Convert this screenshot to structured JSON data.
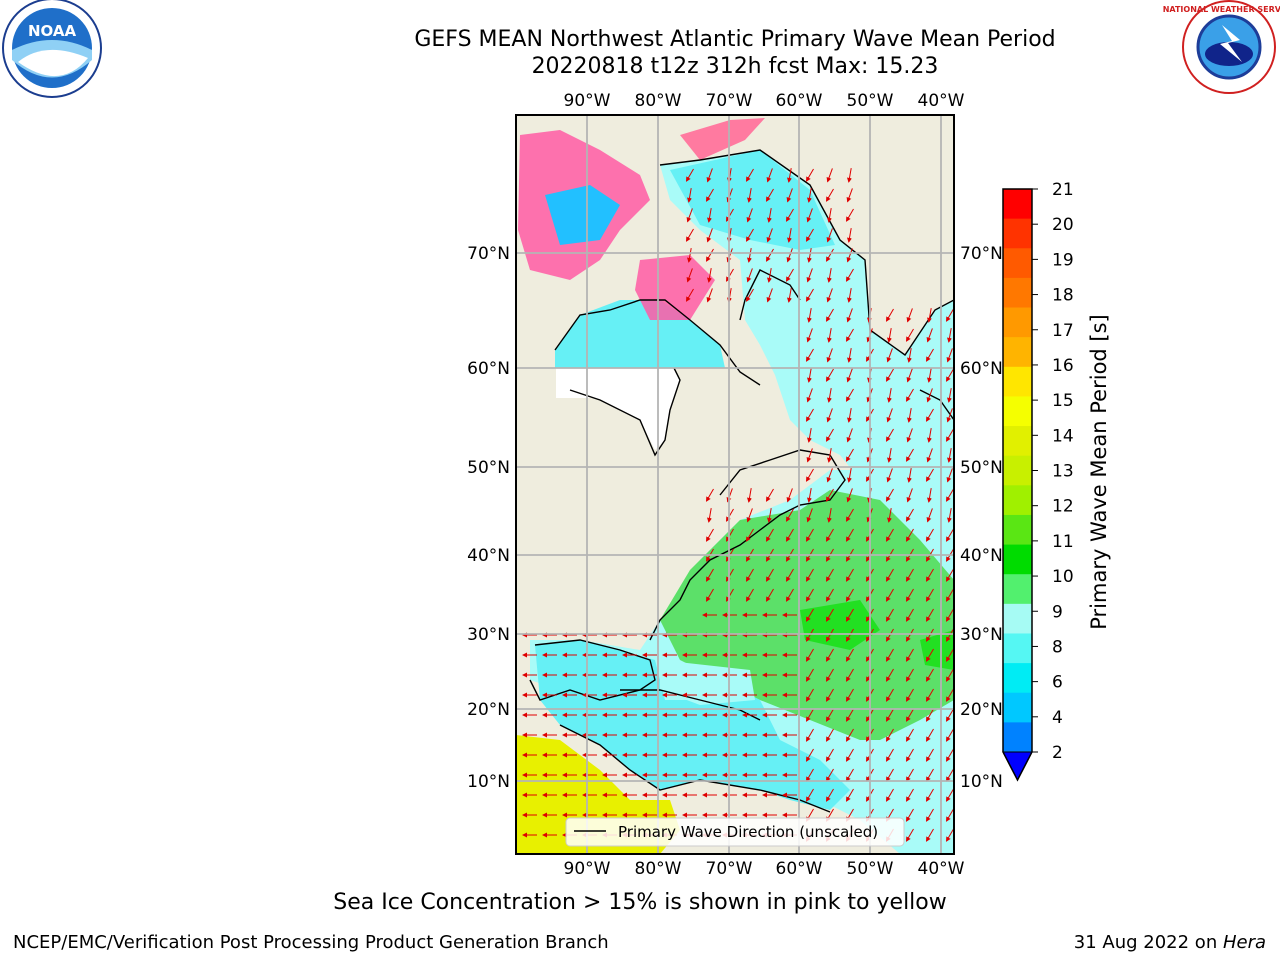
{
  "title": {
    "line1": "GEFS MEAN Northwest Atlantic Primary Wave Mean Period",
    "line2": "20220818 t12z 312h fcst   Max: 15.23"
  },
  "logos": {
    "left": {
      "icon": "noaa-logo",
      "text": "NOAA"
    },
    "right": {
      "icon": "national-weather-service-logo",
      "text": "NATIONAL WEATHER SERVICE"
    }
  },
  "map": {
    "lon_labels": [
      "90°W",
      "80°W",
      "70°W",
      "60°W",
      "50°W",
      "40°W"
    ],
    "lat_labels": [
      "70°N",
      "60°N",
      "50°N",
      "40°N",
      "30°N",
      "20°N",
      "10°N"
    ],
    "legend_label": "Primary Wave Direction (unscaled)",
    "colors": {
      "land": "#efedde",
      "ocean_cyan": "#66f0f5",
      "ocean_light": "#a9fbf8",
      "ocean_green": "#5ce069",
      "ocean_bright_green": "#22e022",
      "yellow_field": "#e8f000",
      "sea_ice_pink": "#ff5aa5",
      "grid": "#b4b4b4",
      "arrows": "#e00000"
    }
  },
  "colorbar": {
    "label": "Primary Wave Mean Period [s]",
    "ticks": [
      "21",
      "20",
      "19",
      "18",
      "17",
      "16",
      "15",
      "14",
      "13",
      "12",
      "11",
      "10",
      "9",
      "8",
      "6",
      "4",
      "2"
    ],
    "colors": [
      "#ff0000",
      "#ff3300",
      "#ff5a00",
      "#ff7800",
      "#ff9900",
      "#ffb400",
      "#ffe600",
      "#f5ff00",
      "#e1f000",
      "#c8f000",
      "#a0f000",
      "#5ae614",
      "#00dc00",
      "#52f06e",
      "#a6fbf4",
      "#55f7f3",
      "#00ecf4",
      "#00c8ff",
      "#0082ff"
    ],
    "extend_color": "#0000ff"
  },
  "footer": {
    "note": "Sea Ice Concentration > 15% is shown in pink to yellow",
    "credit": "NCEP/EMC/Verification Post Processing Product Generation Branch",
    "date": "31 Aug 2022 on ",
    "machine": "Hera"
  }
}
